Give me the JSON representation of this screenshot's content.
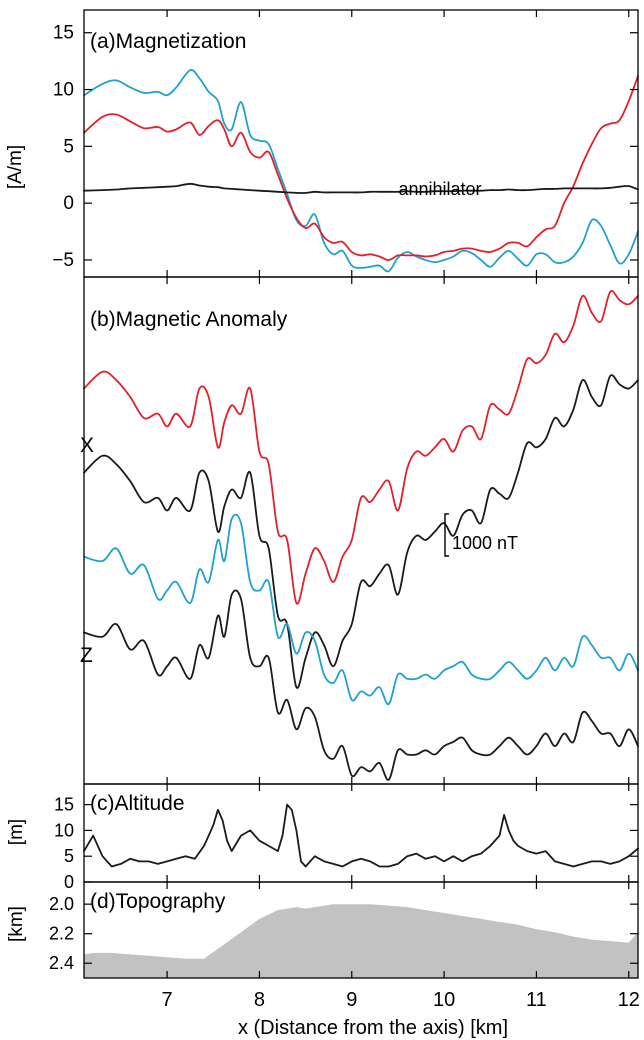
{
  "colors": {
    "red": "#e2202c",
    "cyan": "#1ea1cf",
    "black": "#1a1a1a",
    "gray": "#c2c2c3"
  },
  "xaxis": {
    "label": "x (Distance from the axis) [km]",
    "range": [
      6.1,
      12.1
    ],
    "ticks": [
      7,
      8,
      9,
      10,
      11,
      12
    ],
    "tick_labels": [
      "7",
      "8",
      "9",
      "10",
      "11",
      "12"
    ]
  },
  "chart_data": [
    {
      "type": "line",
      "title": "(a)Magnetization",
      "ylabel": "[A/m]",
      "ylim": [
        -6.5,
        17
      ],
      "yticks": [
        -5,
        0,
        5,
        10,
        15
      ],
      "ytick_labels": [
        "−5",
        "0",
        "5",
        "10",
        "15"
      ],
      "annotation": "annihilator",
      "x": [
        6.1,
        6.3,
        6.45,
        6.6,
        6.75,
        6.9,
        7.0,
        7.1,
        7.25,
        7.35,
        7.45,
        7.55,
        7.62,
        7.7,
        7.8,
        7.9,
        8.0,
        8.1,
        8.2,
        8.3,
        8.4,
        8.5,
        8.6,
        8.7,
        8.8,
        8.9,
        9.0,
        9.1,
        9.2,
        9.3,
        9.4,
        9.5,
        9.6,
        9.7,
        9.8,
        9.9,
        10.0,
        10.1,
        10.2,
        10.3,
        10.4,
        10.5,
        10.6,
        10.7,
        10.8,
        10.9,
        11.0,
        11.1,
        11.2,
        11.3,
        11.4,
        11.5,
        11.6,
        11.7,
        11.8,
        11.9,
        12.0,
        12.1
      ],
      "series": [
        {
          "color_key": "cyan",
          "values": [
            9.5,
            10.5,
            10.8,
            10.2,
            9.7,
            9.8,
            9.5,
            10.2,
            11.7,
            11.0,
            9.8,
            9.0,
            7.0,
            6.5,
            8.9,
            6.0,
            5.5,
            5.2,
            3.0,
            0.8,
            -1.5,
            -2.0,
            -1.0,
            -3.5,
            -4.5,
            -4.2,
            -5.5,
            -5.7,
            -5.6,
            -5.5,
            -6.0,
            -4.8,
            -4.3,
            -4.7,
            -5.0,
            -5.2,
            -5.0,
            -4.7,
            -4.2,
            -4.4,
            -5.0,
            -5.6,
            -4.8,
            -4.2,
            -4.9,
            -5.5,
            -4.5,
            -4.5,
            -5.2,
            -5.2,
            -4.7,
            -3.5,
            -1.5,
            -2.0,
            -3.7,
            -5.3,
            -4.5,
            -2.5
          ]
        },
        {
          "color_key": "red",
          "values": [
            6.2,
            7.6,
            7.8,
            7.2,
            6.6,
            6.7,
            6.3,
            6.5,
            7.1,
            6.0,
            6.8,
            7.3,
            6.5,
            5.0,
            6.2,
            4.5,
            4.0,
            4.5,
            2.5,
            0.4,
            -1.3,
            -2.2,
            -1.8,
            -3.0,
            -3.5,
            -3.4,
            -4.3,
            -4.6,
            -4.5,
            -4.7,
            -5.0,
            -4.6,
            -4.6,
            -4.6,
            -4.7,
            -4.6,
            -4.3,
            -4.2,
            -4.0,
            -4.0,
            -4.2,
            -4.3,
            -4.0,
            -3.5,
            -3.5,
            -3.8,
            -3.0,
            -2.3,
            -2.0,
            0.0,
            1.5,
            3.5,
            5.2,
            6.6,
            7.0,
            7.3,
            9.0,
            11.2
          ]
        },
        {
          "color_key": "black",
          "values": [
            1.1,
            1.15,
            1.2,
            1.3,
            1.35,
            1.4,
            1.45,
            1.5,
            1.7,
            1.55,
            1.45,
            1.4,
            1.3,
            1.25,
            1.2,
            1.15,
            1.1,
            1.05,
            1.0,
            0.95,
            0.9,
            0.9,
            1.0,
            0.95,
            0.95,
            0.95,
            0.95,
            0.95,
            1.0,
            1.0,
            1.0,
            1.0,
            1.05,
            1.0,
            1.0,
            1.05,
            1.05,
            1.05,
            1.1,
            1.1,
            1.1,
            1.15,
            1.15,
            1.2,
            1.15,
            1.15,
            1.2,
            1.25,
            1.25,
            1.3,
            1.3,
            1.3,
            1.3,
            1.3,
            1.35,
            1.45,
            1.5,
            1.2
          ]
        }
      ]
    },
    {
      "type": "line",
      "title": "(b)Magnetic Anomaly",
      "scale_bar": {
        "label": "1000 nT",
        "value": 1000
      },
      "row_labels": [
        "X",
        "Z"
      ],
      "ylim": [
        -11800,
        250
      ],
      "x": [
        6.1,
        6.3,
        6.45,
        6.6,
        6.75,
        6.9,
        7.0,
        7.1,
        7.25,
        7.35,
        7.45,
        7.55,
        7.62,
        7.7,
        7.8,
        7.9,
        8.0,
        8.1,
        8.2,
        8.3,
        8.4,
        8.5,
        8.6,
        8.7,
        8.8,
        8.9,
        9.0,
        9.1,
        9.2,
        9.3,
        9.4,
        9.5,
        9.6,
        9.7,
        9.8,
        9.9,
        10.0,
        10.1,
        10.2,
        10.3,
        10.4,
        10.5,
        10.6,
        10.7,
        10.8,
        10.9,
        11.0,
        11.1,
        11.2,
        11.3,
        11.4,
        11.5,
        11.6,
        11.7,
        11.8,
        11.9,
        12.0,
        12.1
      ],
      "series": [
        {
          "color_key": "red",
          "values": [
            -2400,
            -2000,
            -2200,
            -2600,
            -3100,
            -3000,
            -3300,
            -3000,
            -3300,
            -2400,
            -2600,
            -3800,
            -3200,
            -2800,
            -3000,
            -2400,
            -3900,
            -4200,
            -5800,
            -6000,
            -7500,
            -6800,
            -6200,
            -6500,
            -7000,
            -6400,
            -6000,
            -5000,
            -5100,
            -4800,
            -4600,
            -5300,
            -4300,
            -3900,
            -4000,
            -3800,
            -3600,
            -3900,
            -3400,
            -3300,
            -3600,
            -2800,
            -2900,
            -3000,
            -2400,
            -1700,
            -1800,
            -1600,
            -1100,
            -1300,
            -900,
            -200,
            -600,
            -800,
            -100,
            -300,
            -400,
            -200
          ]
        },
        {
          "color_key": "black",
          "values": [
            -4400,
            -4000,
            -4200,
            -4600,
            -5100,
            -5000,
            -5300,
            -5000,
            -5300,
            -4400,
            -4600,
            -5800,
            -5200,
            -4800,
            -5000,
            -4400,
            -5900,
            -6200,
            -7800,
            -8000,
            -9500,
            -8800,
            -8200,
            -8500,
            -9000,
            -8400,
            -8000,
            -7000,
            -7100,
            -6800,
            -6600,
            -7300,
            -6300,
            -5900,
            -6000,
            -5800,
            -5600,
            -5900,
            -5400,
            -5300,
            -5600,
            -4800,
            -4900,
            -5000,
            -4400,
            -3700,
            -3800,
            -3600,
            -3100,
            -3300,
            -2900,
            -2200,
            -2600,
            -2800,
            -2100,
            -2300,
            -2400,
            -2200
          ]
        },
        {
          "color_key": "cyan",
          "values": [
            -6400,
            -6500,
            -6200,
            -6800,
            -6600,
            -7400,
            -7200,
            -7000,
            -7500,
            -6700,
            -7000,
            -6000,
            -6500,
            -5500,
            -5600,
            -7000,
            -7200,
            -7000,
            -8300,
            -8000,
            -8700,
            -8200,
            -8400,
            -9200,
            -9400,
            -9100,
            -9800,
            -9600,
            -9700,
            -9500,
            -9900,
            -9200,
            -9300,
            -9300,
            -9200,
            -9300,
            -9100,
            -9000,
            -8900,
            -9200,
            -9300,
            -9300,
            -9100,
            -8900,
            -9100,
            -9300,
            -9100,
            -8800,
            -9100,
            -8800,
            -9000,
            -8300,
            -8500,
            -8800,
            -8800,
            -9100,
            -8700,
            -9100
          ]
        },
        {
          "color_key": "black",
          "values": [
            -8200,
            -8300,
            -8000,
            -8600,
            -8400,
            -9200,
            -9000,
            -8800,
            -9300,
            -8500,
            -8800,
            -7800,
            -8300,
            -7300,
            -7400,
            -8800,
            -9000,
            -8800,
            -10100,
            -9800,
            -10500,
            -10000,
            -10200,
            -11000,
            -11200,
            -10900,
            -11600,
            -11400,
            -11500,
            -11300,
            -11700,
            -11000,
            -11100,
            -11100,
            -11000,
            -11100,
            -10900,
            -10800,
            -10700,
            -11000,
            -11100,
            -11100,
            -10900,
            -10700,
            -10900,
            -11100,
            -10900,
            -10600,
            -10900,
            -10600,
            -10800,
            -10100,
            -10300,
            -10600,
            -10600,
            -10900,
            -10500,
            -10900
          ]
        }
      ]
    },
    {
      "type": "line",
      "title": "(c)Altitude",
      "ylabel": "[m]",
      "ylim": [
        0,
        19
      ],
      "yticks": [
        0,
        5,
        10,
        15
      ],
      "ytick_labels": [
        "0",
        "5",
        "10",
        "15"
      ],
      "x": [
        6.1,
        6.2,
        6.3,
        6.4,
        6.5,
        6.6,
        6.7,
        6.8,
        6.9,
        7.0,
        7.1,
        7.2,
        7.3,
        7.4,
        7.45,
        7.5,
        7.55,
        7.6,
        7.65,
        7.7,
        7.8,
        7.9,
        8.0,
        8.1,
        8.2,
        8.25,
        8.3,
        8.35,
        8.4,
        8.45,
        8.5,
        8.6,
        8.7,
        8.8,
        8.9,
        9.0,
        9.1,
        9.2,
        9.3,
        9.4,
        9.5,
        9.6,
        9.7,
        9.8,
        9.9,
        10.0,
        10.1,
        10.2,
        10.3,
        10.4,
        10.5,
        10.6,
        10.65,
        10.7,
        10.75,
        10.8,
        10.9,
        11.0,
        11.1,
        11.2,
        11.3,
        11.4,
        11.5,
        11.6,
        11.7,
        11.8,
        11.9,
        12.0,
        12.1
      ],
      "series": [
        {
          "color_key": "black",
          "values": [
            6,
            9,
            5,
            3,
            3.5,
            4.5,
            4,
            4,
            3.5,
            4,
            4.5,
            5,
            4.5,
            7,
            9,
            11,
            14,
            12,
            8,
            6,
            9,
            10,
            8,
            7,
            6,
            9,
            15,
            14,
            10,
            4,
            3,
            5,
            4,
            3.5,
            3,
            4,
            4.5,
            4,
            3,
            3,
            3.5,
            5,
            5.5,
            4.5,
            5,
            4,
            5,
            4,
            5,
            5.5,
            7,
            9,
            13,
            10,
            8,
            7,
            6,
            5.5,
            6,
            4,
            3.5,
            3,
            3.5,
            4,
            4,
            3.5,
            4,
            5,
            6.5
          ]
        }
      ]
    },
    {
      "type": "area",
      "title": "(d)Topography",
      "ylabel": "[km]",
      "ylim": [
        2.5,
        1.85
      ],
      "yticks": [
        2.0,
        2.2,
        2.4
      ],
      "ytick_labels": [
        "2.0",
        "2.2",
        "2.4"
      ],
      "x": [
        6.1,
        6.2,
        6.4,
        6.6,
        6.8,
        7.0,
        7.2,
        7.4,
        7.6,
        7.8,
        8.0,
        8.2,
        8.4,
        8.5,
        8.6,
        8.8,
        9.0,
        9.2,
        9.4,
        9.6,
        9.8,
        10.0,
        10.2,
        10.4,
        10.6,
        10.8,
        11.0,
        11.2,
        11.4,
        11.6,
        11.8,
        12.0,
        12.1
      ],
      "series": [
        {
          "color_key": "gray",
          "values": [
            2.34,
            2.33,
            2.33,
            2.34,
            2.35,
            2.36,
            2.37,
            2.37,
            2.28,
            2.19,
            2.1,
            2.04,
            2.02,
            2.03,
            2.02,
            2.0,
            2.0,
            2.0,
            2.01,
            2.02,
            2.04,
            2.06,
            2.08,
            2.1,
            2.12,
            2.14,
            2.17,
            2.19,
            2.22,
            2.24,
            2.25,
            2.26,
            2.19
          ]
        }
      ]
    }
  ]
}
